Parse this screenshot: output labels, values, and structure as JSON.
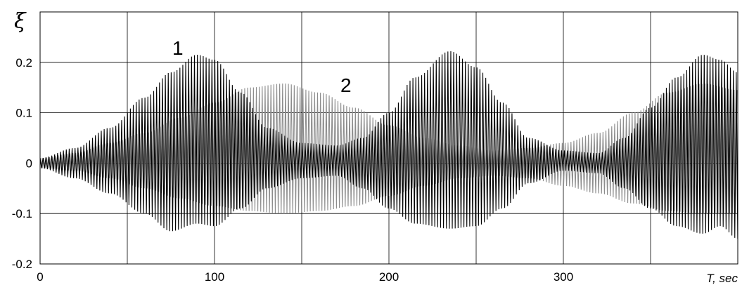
{
  "chart_data": {
    "type": "line",
    "title": "",
    "xlabel_var": "T",
    "xlabel_unit": ", sec",
    "ylabel": "ξ",
    "xlim": [
      0,
      400
    ],
    "ylim": [
      -0.2,
      0.3
    ],
    "x_ticks": [
      0,
      100,
      200,
      300
    ],
    "x_tick_labels": [
      "0",
      "100",
      "200",
      "300"
    ],
    "y_ticks": [
      -0.2,
      -0.1,
      0,
      0.1,
      0.2
    ],
    "y_tick_labels": [
      "-0.2",
      "-0.1",
      "0",
      "0.1",
      "0.2"
    ],
    "grid": true,
    "oscillation_period_sec": 1.67,
    "series": [
      {
        "name": "1",
        "color": "#000000",
        "envelope": {
          "t": [
            0,
            20,
            40,
            60,
            75,
            90,
            100,
            115,
            130,
            150,
            170,
            185,
            200,
            215,
            235,
            250,
            265,
            280,
            300,
            320,
            335,
            350,
            365,
            380,
            390,
            400
          ],
          "upper": [
            0.01,
            0.03,
            0.07,
            0.13,
            0.18,
            0.215,
            0.205,
            0.14,
            0.07,
            0.04,
            0.035,
            0.05,
            0.1,
            0.17,
            0.222,
            0.19,
            0.12,
            0.05,
            0.025,
            0.02,
            0.05,
            0.11,
            0.17,
            0.215,
            0.205,
            0.18
          ],
          "lower": [
            -0.01,
            -0.03,
            -0.06,
            -0.1,
            -0.135,
            -0.12,
            -0.125,
            -0.09,
            -0.05,
            -0.03,
            -0.025,
            -0.05,
            -0.09,
            -0.12,
            -0.13,
            -0.125,
            -0.09,
            -0.04,
            -0.015,
            -0.02,
            -0.05,
            -0.09,
            -0.125,
            -0.14,
            -0.125,
            -0.15
          ]
        }
      },
      {
        "name": "2",
        "color": "#8c8c8c",
        "envelope": {
          "t": [
            0,
            20,
            40,
            60,
            80,
            100,
            120,
            140,
            160,
            180,
            200,
            220,
            240,
            260,
            280,
            300,
            320,
            340,
            360,
            380,
            400
          ],
          "upper": [
            0.01,
            0.02,
            0.04,
            0.06,
            0.09,
            0.12,
            0.15,
            0.158,
            0.14,
            0.11,
            0.075,
            0.05,
            0.035,
            0.025,
            0.03,
            0.04,
            0.06,
            0.1,
            0.14,
            0.158,
            0.145
          ],
          "lower": [
            -0.01,
            -0.015,
            -0.03,
            -0.05,
            -0.07,
            -0.085,
            -0.095,
            -0.1,
            -0.095,
            -0.085,
            -0.065,
            -0.045,
            -0.03,
            -0.025,
            -0.03,
            -0.045,
            -0.06,
            -0.08,
            -0.095,
            -0.1,
            -0.1
          ]
        }
      }
    ]
  }
}
